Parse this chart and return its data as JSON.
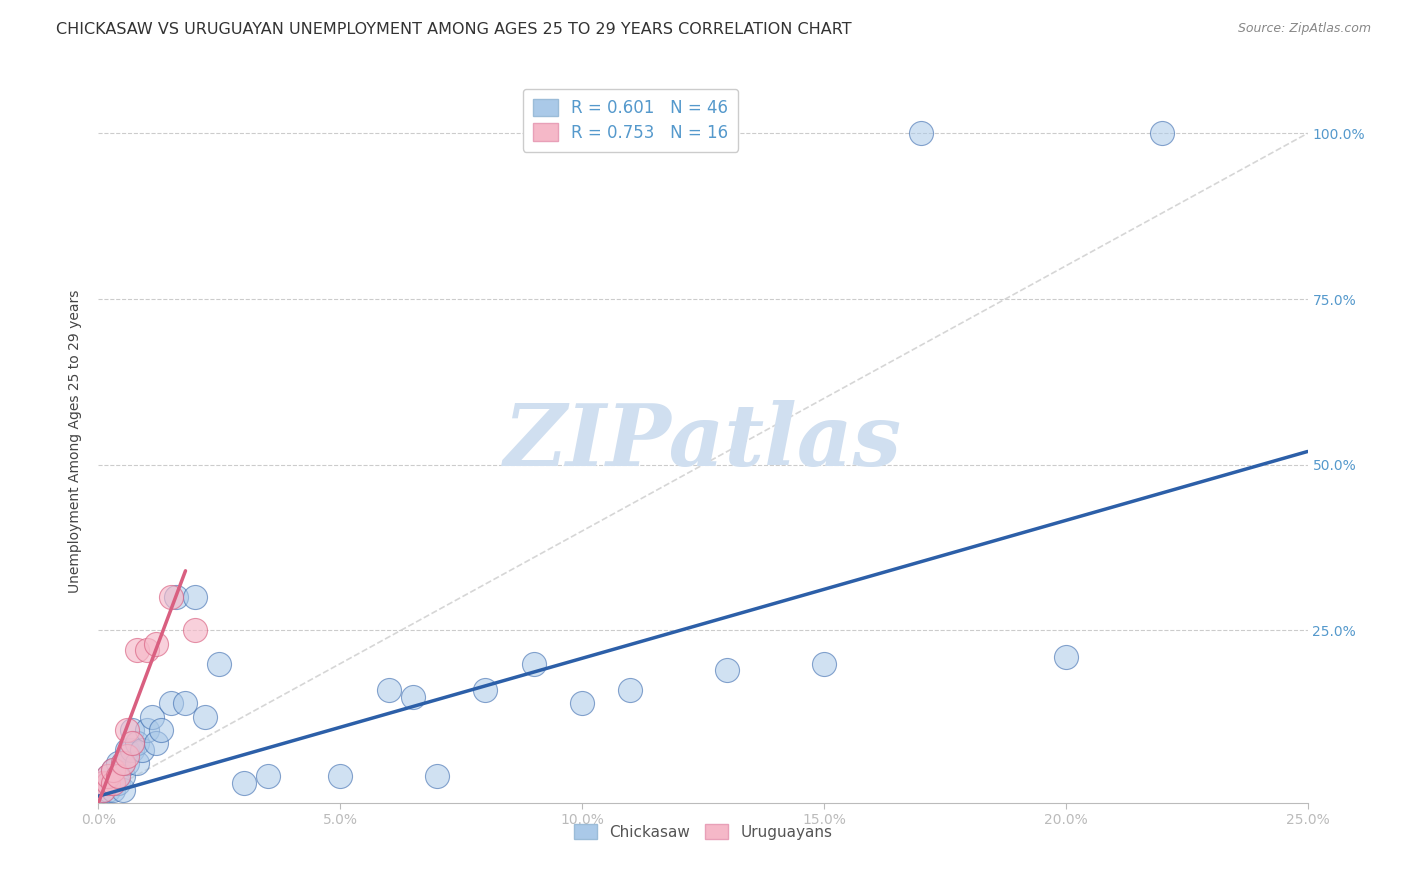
{
  "title": "CHICKASAW VS URUGUAYAN UNEMPLOYMENT AMONG AGES 25 TO 29 YEARS CORRELATION CHART",
  "source": "Source: ZipAtlas.com",
  "ylabel": "Unemployment Among Ages 25 to 29 years",
  "chickasaw_R": "0.601",
  "chickasaw_N": "46",
  "uruguayan_R": "0.753",
  "uruguayan_N": "16",
  "xlim": [
    0.0,
    0.25
  ],
  "ylim": [
    -0.01,
    1.08
  ],
  "xticks": [
    0.0,
    0.05,
    0.1,
    0.15,
    0.2,
    0.25
  ],
  "yticks": [
    0.0,
    0.25,
    0.5,
    0.75,
    1.0
  ],
  "xtick_labels": [
    "0.0%",
    "5.0%",
    "10.0%",
    "15.0%",
    "20.0%",
    "25.0%"
  ],
  "ytick_labels": [
    "",
    "25.0%",
    "50.0%",
    "75.0%",
    "100.0%"
  ],
  "chickasaw_color": "#aac9e8",
  "uruguayan_color": "#f5b8c8",
  "chickasaw_line_color": "#2c5fa8",
  "uruguayan_line_color": "#d95f80",
  "ref_line_color": "#cccccc",
  "title_fontsize": 11.5,
  "axis_label_fontsize": 10,
  "tick_fontsize": 10,
  "legend_fontsize": 12,
  "watermark_color": "#d0dff0",
  "chickasaw_x": [
    0.001,
    0.001,
    0.002,
    0.002,
    0.002,
    0.003,
    0.003,
    0.003,
    0.004,
    0.004,
    0.004,
    0.005,
    0.005,
    0.005,
    0.006,
    0.006,
    0.007,
    0.007,
    0.008,
    0.008,
    0.009,
    0.01,
    0.011,
    0.012,
    0.013,
    0.015,
    0.016,
    0.018,
    0.02,
    0.022,
    0.025,
    0.03,
    0.035,
    0.05,
    0.06,
    0.065,
    0.07,
    0.08,
    0.09,
    0.1,
    0.11,
    0.13,
    0.15,
    0.17,
    0.2,
    0.22
  ],
  "chickasaw_y": [
    0.02,
    0.01,
    0.02,
    0.01,
    0.03,
    0.02,
    0.01,
    0.04,
    0.02,
    0.05,
    0.03,
    0.01,
    0.03,
    0.05,
    0.07,
    0.05,
    0.07,
    0.1,
    0.05,
    0.08,
    0.07,
    0.1,
    0.12,
    0.08,
    0.1,
    0.14,
    0.3,
    0.14,
    0.3,
    0.12,
    0.2,
    0.02,
    0.03,
    0.03,
    0.16,
    0.15,
    0.03,
    0.16,
    0.2,
    0.14,
    0.16,
    0.19,
    0.2,
    1.0,
    0.21,
    1.0
  ],
  "uruguayan_x": [
    0.001,
    0.001,
    0.002,
    0.002,
    0.003,
    0.003,
    0.004,
    0.005,
    0.006,
    0.006,
    0.007,
    0.008,
    0.01,
    0.012,
    0.015,
    0.02
  ],
  "uruguayan_y": [
    0.01,
    0.02,
    0.02,
    0.03,
    0.02,
    0.04,
    0.03,
    0.05,
    0.06,
    0.1,
    0.08,
    0.22,
    0.22,
    0.23,
    0.3,
    0.25
  ],
  "chick_trend_x": [
    0.0,
    0.25
  ],
  "chick_trend_y": [
    0.0,
    0.52
  ],
  "urug_trend_x": [
    0.0,
    0.018
  ],
  "urug_trend_y": [
    -0.01,
    0.34
  ],
  "ref_line_x": [
    0.0,
    0.25
  ],
  "ref_line_y": [
    0.0,
    1.0
  ]
}
